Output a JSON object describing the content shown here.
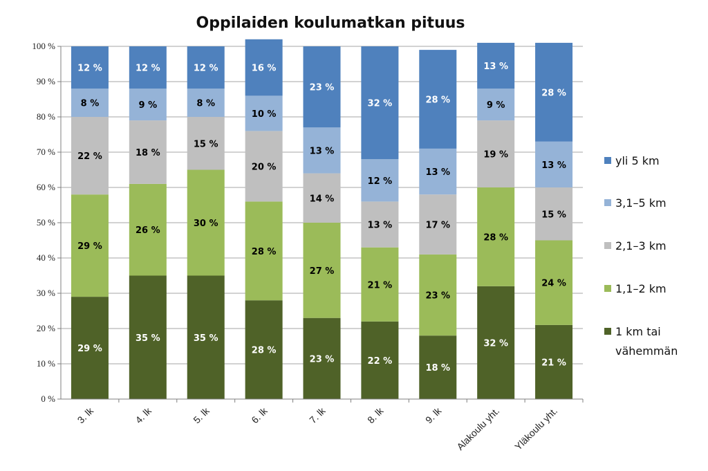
{
  "chart_data": {
    "type": "bar",
    "stacked": true,
    "title": "Oppilaiden koulumatkan pituus",
    "xlabel": "",
    "ylabel": "",
    "ylim": [
      0,
      100
    ],
    "yticks": [
      "0 %",
      "10 %",
      "20 %",
      "30 %",
      "40 %",
      "50 %",
      "60 %",
      "70 %",
      "80 %",
      "90 %",
      "100 %"
    ],
    "grid": true,
    "legend_position": "right",
    "categories": [
      "3. lk",
      "4. lk",
      "5. lk",
      "6. lk",
      "7. lk",
      "8. lk",
      "9. lk",
      "Alakoulu yht.",
      "Yläkoulu yht."
    ],
    "series": [
      {
        "name": "1 km tai vähemmän",
        "color": "#4f6228",
        "label_color": "#ffffff",
        "label_weight": "normal",
        "values": [
          29,
          35,
          35,
          28,
          23,
          22,
          18,
          32,
          21
        ],
        "labels": [
          "29 %",
          "35 %",
          "35 %",
          "28 %",
          "23 %",
          "22 %",
          "18 %",
          "32 %",
          "21 %"
        ]
      },
      {
        "name": "1,1–2 km",
        "color": "#9bbb59",
        "label_color": "#000000",
        "label_weight": "bold",
        "values": [
          29,
          26,
          30,
          28,
          27,
          21,
          23,
          28,
          24
        ],
        "labels": [
          "29 %",
          "26 %",
          "30 %",
          "28 %",
          "27 %",
          "21 %",
          "23 %",
          "28 %",
          "24 %"
        ]
      },
      {
        "name": "2,1–3 km",
        "color": "#bfbfbf",
        "label_color": "#000000",
        "label_weight": "bold",
        "values": [
          22,
          18,
          15,
          20,
          14,
          13,
          17,
          19,
          15
        ],
        "labels": [
          "22 %",
          "18 %",
          "15 %",
          "20 %",
          "14 %",
          "13 %",
          "17 %",
          "19 %",
          "15 %"
        ]
      },
      {
        "name": "3,1–5 km",
        "color": "#95b3d7",
        "label_color": "#000000",
        "label_weight": "bold",
        "values": [
          8,
          9,
          8,
          10,
          13,
          12,
          13,
          9,
          13
        ],
        "labels": [
          "8 %",
          "9 %",
          "8 %",
          "10 %",
          "13 %",
          "12 %",
          "13 %",
          "9 %",
          "13 %"
        ]
      },
      {
        "name": "yli 5 km",
        "color": "#4f81bd",
        "label_color": "#ffffff",
        "label_weight": "bold",
        "values": [
          12,
          12,
          12,
          16,
          23,
          32,
          28,
          13,
          28
        ],
        "labels": [
          "12 %",
          "12 %",
          "12 %",
          "16 %",
          "23 %",
          "32 %",
          "28 %",
          "13 %",
          "28 %"
        ]
      }
    ],
    "legend": [
      {
        "text_lines": [
          "yli 5 km"
        ],
        "color": "#4f81bd"
      },
      {
        "text_lines": [
          "3,1–5 km"
        ],
        "color": "#95b3d7"
      },
      {
        "text_lines": [
          "2,1–3 km"
        ],
        "color": "#bfbfbf"
      },
      {
        "text_lines": [
          "1,1–2 km"
        ],
        "color": "#9bbb59"
      },
      {
        "text_lines": [
          "1 km tai",
          "vähemmän"
        ],
        "color": "#4f6228"
      }
    ]
  }
}
